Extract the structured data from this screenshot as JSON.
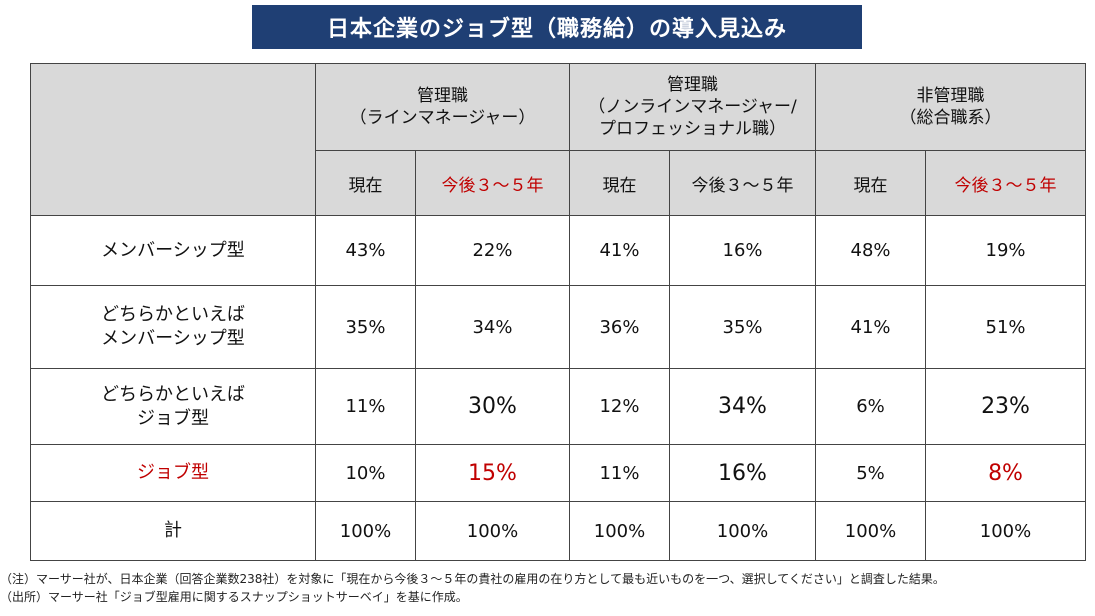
{
  "title": "日本企業のジョブ型（職務給）の導入見込み",
  "groups": [
    {
      "line1": "管理職",
      "line2": "（ラインマネージャー）",
      "line3": ""
    },
    {
      "line1": "管理職",
      "line2": "（ノンラインマネージャー/",
      "line3": "プロフェッショナル職）"
    },
    {
      "line1": "非管理職",
      "line2": "（総合職系）",
      "line3": ""
    }
  ],
  "subheaders": [
    "現在",
    "今後３～５年",
    "現在",
    "今後３～５年",
    "現在",
    "今後３～５年"
  ],
  "rows": [
    {
      "label1": "メンバーシップ型",
      "label2": "",
      "values": [
        "43%",
        "22%",
        "41%",
        "16%",
        "48%",
        "19%"
      ]
    },
    {
      "label1": "どちらかといえば",
      "label2": "メンバーシップ型",
      "values": [
        "35%",
        "34%",
        "36%",
        "35%",
        "41%",
        "51%"
      ]
    },
    {
      "label1": "どちらかといえば",
      "label2": "ジョブ型",
      "values": [
        "11%",
        "30%",
        "12%",
        "34%",
        "6%",
        "23%"
      ]
    },
    {
      "label1": "ジョブ型",
      "label2": "",
      "values": [
        "10%",
        "15%",
        "11%",
        "16%",
        "5%",
        "8%"
      ]
    },
    {
      "label1": "計",
      "label2": "",
      "values": [
        "100%",
        "100%",
        "100%",
        "100%",
        "100%",
        "100%"
      ]
    }
  ],
  "notes": [
    "（注）マーサー社が、日本企業（回答企業数238社）を対象に「現在から今後３～５年の貴社の雇用の在り方として最も近いものを一つ、選択してください」と調査した結果。",
    "（出所）マーサー社「ジョブ型雇用に関するスナップショットサーベイ」を基に作成。"
  ],
  "colors": {
    "title_bg": "#1f3f74",
    "header_bg": "#d9d9d9",
    "highlight": "#c00000"
  }
}
